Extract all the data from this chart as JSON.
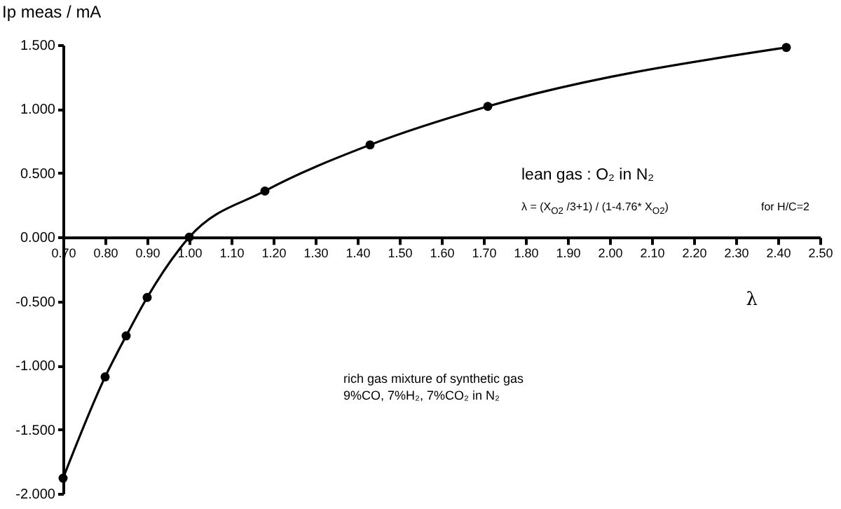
{
  "chart_data": {
    "type": "line",
    "xlabel": "λ",
    "ylabel": "Ip meas / mA",
    "annotations": [
      "lean gas : O₂ in N₂",
      "λ = (X$_{O2}$ /3+1) / (1-4.76* X$_{O2}$)",
      "for H/C=2",
      "rich gas mixture of synthetic gas",
      "9%CO, 7%H₂, 7%CO₂ in N₂"
    ],
    "x": [
      0.7,
      0.8,
      0.85,
      0.9,
      1.0,
      1.18,
      1.43,
      1.71,
      2.42
    ],
    "series": [
      {
        "color": "#000000",
        "values": [
          -1.88,
          -1.09,
          -0.77,
          -0.47,
          0.0,
          0.36,
          0.72,
          1.02,
          1.48
        ]
      }
    ],
    "xlim": [
      0.7,
      2.5
    ],
    "xticks": [
      {
        "value": 0.7,
        "label": "0.70"
      },
      {
        "value": 0.8,
        "label": "0.80"
      },
      {
        "value": 0.9,
        "label": "0.90"
      },
      {
        "value": 1.0,
        "label": "1.00"
      },
      {
        "value": 1.1,
        "label": "1.10"
      },
      {
        "value": 1.2,
        "label": "1.20"
      },
      {
        "value": 1.3,
        "label": "1.30"
      },
      {
        "value": 1.4,
        "label": "1.40"
      },
      {
        "value": 1.5,
        "label": "1.50"
      },
      {
        "value": 1.6,
        "label": "1.60"
      },
      {
        "value": 1.7,
        "label": "1.70"
      },
      {
        "value": 1.8,
        "label": "1.80"
      },
      {
        "value": 1.9,
        "label": "1.90"
      },
      {
        "value": 2.0,
        "label": "2.00"
      },
      {
        "value": 2.1,
        "label": "2.10"
      },
      {
        "value": 2.2,
        "label": "2.20"
      },
      {
        "value": 2.3,
        "label": "2.30"
      },
      {
        "value": 2.4,
        "label": "2.40"
      },
      {
        "value": 2.5,
        "label": "2.50"
      }
    ],
    "ylim": [
      -2.0,
      1.5
    ],
    "yticks": [
      {
        "value": -2.0,
        "label": "-2.000"
      },
      {
        "value": -1.5,
        "label": "-1.500"
      },
      {
        "value": -1.0,
        "label": "-1.000"
      },
      {
        "value": -0.5,
        "label": "-0.500"
      },
      {
        "value": 0.0,
        "label": "0.000"
      },
      {
        "value": 0.5,
        "label": "0.500"
      },
      {
        "value": 1.0,
        "label": "1.000"
      },
      {
        "value": 1.5,
        "label": "1.500"
      }
    ],
    "grid": false,
    "marker": "circle",
    "line_style": "solid"
  }
}
